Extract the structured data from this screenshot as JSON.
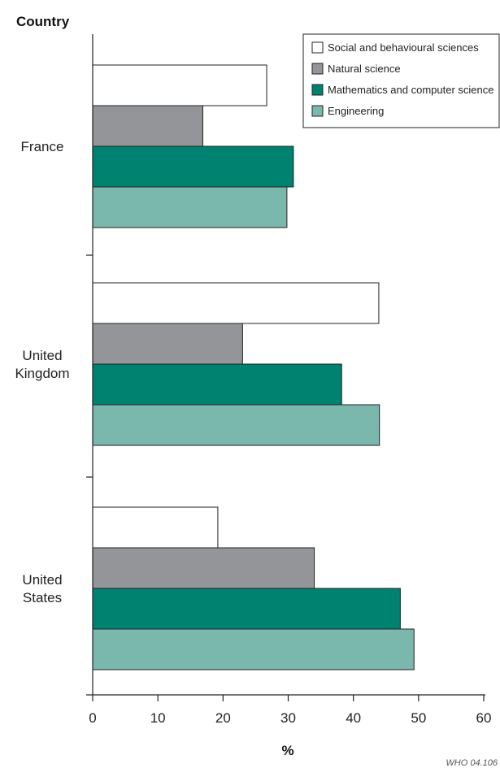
{
  "chart_data": {
    "type": "bar",
    "orientation": "horizontal",
    "title": "",
    "ylabel": "Country",
    "xlabel": "%",
    "xlim": [
      0,
      60
    ],
    "xticks": [
      0,
      10,
      20,
      30,
      40,
      50,
      60
    ],
    "grid": false,
    "legend_position": "top-right",
    "categories": [
      "France",
      "United Kingdom",
      "United States"
    ],
    "category_labels": [
      [
        "France"
      ],
      [
        "United",
        "Kingdom"
      ],
      [
        "United",
        "States"
      ]
    ],
    "series": [
      {
        "name": "Social and behavioural sciences",
        "color": "#ffffff",
        "values": [
          26.7,
          43.9,
          19.2
        ]
      },
      {
        "name": "Natural science",
        "color": "#939598",
        "values": [
          16.9,
          23.0,
          34.0
        ]
      },
      {
        "name": "Mathematics and computer science",
        "color": "#008270",
        "values": [
          30.8,
          38.2,
          47.2
        ]
      },
      {
        "name": "Engineering",
        "color": "#7ab8ad",
        "values": [
          29.8,
          44.0,
          49.3
        ]
      }
    ],
    "credit": "WHO 04.106"
  }
}
